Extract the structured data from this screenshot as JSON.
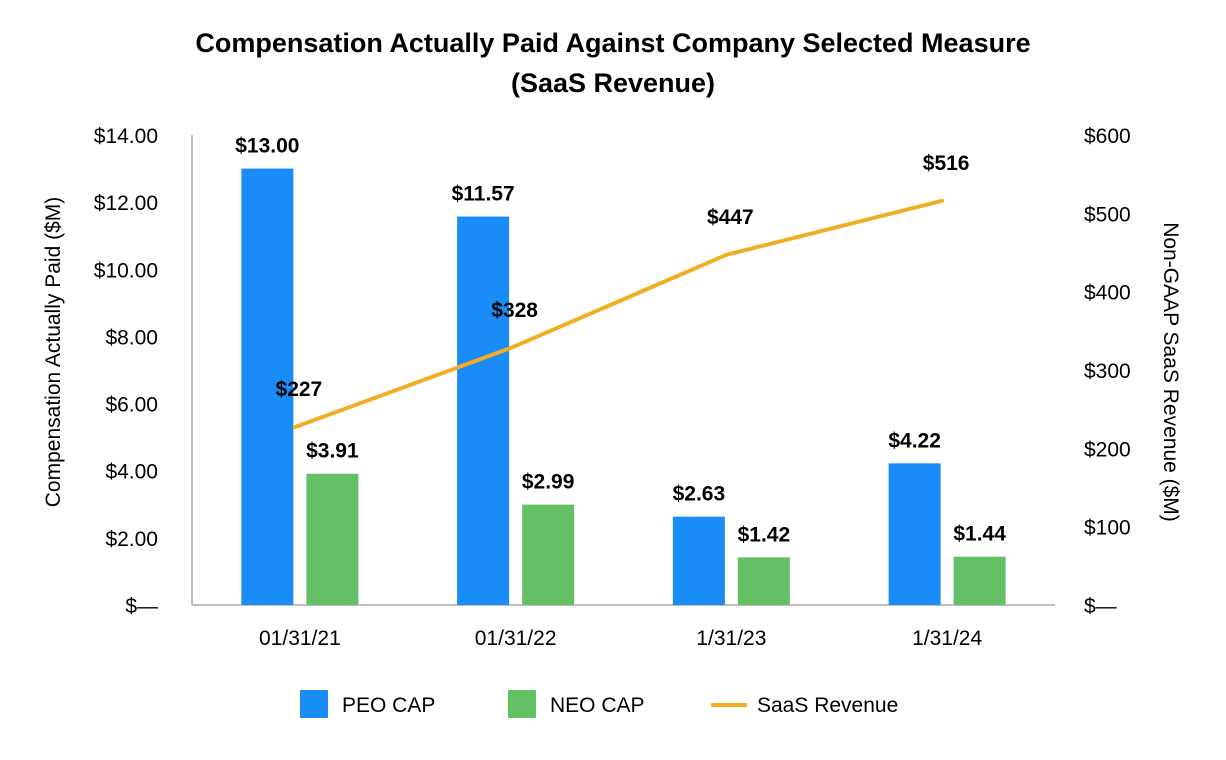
{
  "chart_data": {
    "type": "bar",
    "title": "Compensation Actually Paid Against Company Selected Measure",
    "subtitle": "(SaaS Revenue)",
    "categories": [
      "01/31/21",
      "01/31/22",
      "1/31/23",
      "1/31/24"
    ],
    "ylabel": "Compensation Actually Paid ($M)",
    "y2label": "Non-GAAP SaaS Revenue ($M)",
    "ylim": [
      0,
      14
    ],
    "y2lim": [
      0,
      600
    ],
    "yticks": [
      {
        "value": 0,
        "label": "$—"
      },
      {
        "value": 2,
        "label": "$2.00"
      },
      {
        "value": 4,
        "label": "$4.00"
      },
      {
        "value": 6,
        "label": "$6.00"
      },
      {
        "value": 8,
        "label": "$8.00"
      },
      {
        "value": 10,
        "label": "$10.00"
      },
      {
        "value": 12,
        "label": "$12.00"
      },
      {
        "value": 14,
        "label": "$14.00"
      }
    ],
    "y2ticks": [
      {
        "value": 0,
        "label": "$—"
      },
      {
        "value": 100,
        "label": "$100"
      },
      {
        "value": 200,
        "label": "$200"
      },
      {
        "value": 300,
        "label": "$300"
      },
      {
        "value": 400,
        "label": "$400"
      },
      {
        "value": 500,
        "label": "$500"
      },
      {
        "value": 600,
        "label": "$600"
      }
    ],
    "series": [
      {
        "name": "PEO CAP",
        "kind": "bar",
        "axis": "left",
        "color": "#1a8cf7",
        "values": [
          13.0,
          11.57,
          2.63,
          4.22
        ],
        "labels": [
          "$13.00",
          "$11.57",
          "$2.63",
          "$4.22"
        ]
      },
      {
        "name": "NEO CAP",
        "kind": "bar",
        "axis": "left",
        "color": "#63c065",
        "values": [
          3.91,
          2.99,
          1.42,
          1.44
        ],
        "labels": [
          "$3.91",
          "$2.99",
          "$1.42",
          "$1.44"
        ]
      },
      {
        "name": "SaaS Revenue",
        "kind": "line",
        "axis": "right",
        "color": "#f0ae24",
        "values": [
          227,
          328,
          447,
          516
        ],
        "labels": [
          "$227",
          "$328",
          "$447",
          "$516"
        ]
      }
    ],
    "legend": "bottom"
  }
}
